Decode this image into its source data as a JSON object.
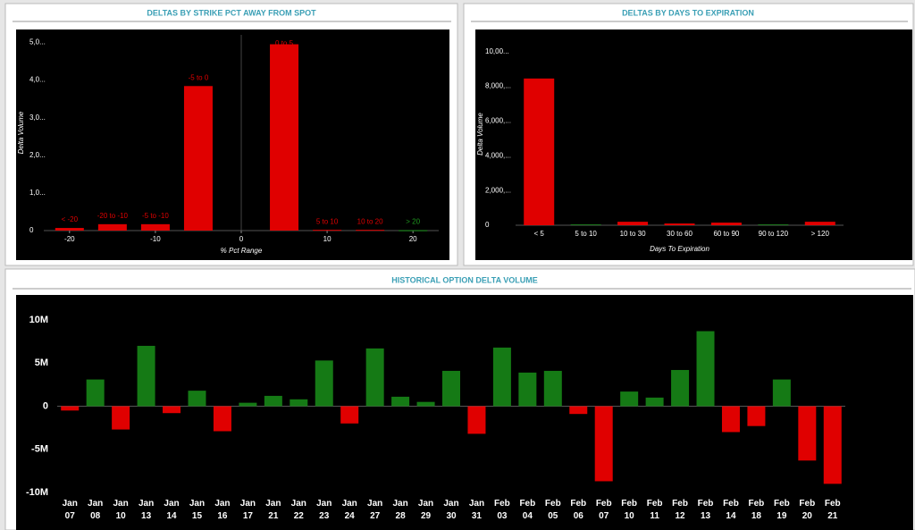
{
  "chart_data": [
    {
      "type": "bar",
      "title": "DELTAS BY STRIKE PCT AWAY FROM SPOT",
      "x_label": "% Pct Range",
      "y_label": "Delta Volume",
      "categories": [
        "< -20",
        "-20 to -10",
        "-5 to -10",
        "-5 to 0",
        "0 to 5",
        "5 to 10",
        "10 to 20",
        "> 20"
      ],
      "x": [
        -20,
        -15,
        -10,
        -5,
        5,
        10,
        15,
        20
      ],
      "values": [
        70,
        170,
        170,
        3840,
        4950,
        20,
        20,
        10
      ],
      "colors": [
        "#e00000",
        "#e00000",
        "#e00000",
        "#e00000",
        "#e00000",
        "#e00000",
        "#e00000",
        "#1f9a1f"
      ],
      "xlim": [
        -23,
        23
      ],
      "xticks": [
        -20,
        -10,
        0,
        10,
        20
      ],
      "ylim": [
        0,
        5200
      ],
      "yticks": [
        0,
        {
          "value": 1000,
          "label": "1,0..."
        },
        {
          "value": 2000,
          "label": "2,0..."
        },
        {
          "value": 3000,
          "label": "3,0..."
        },
        {
          "value": 4000,
          "label": "4,0..."
        },
        {
          "value": 5000,
          "label": "5,0..."
        }
      ]
    },
    {
      "type": "bar",
      "title": "DELTAS BY DAYS TO EXPIRATION",
      "x_label": "Days To Expiration",
      "y_label": "Delta Volume",
      "categories": [
        "< 5",
        "5 to 10",
        "10 to 30",
        "30 to 60",
        "60 to 90",
        "90 to 120",
        "> 120"
      ],
      "values": [
        8450,
        50,
        200,
        100,
        150,
        50,
        200
      ],
      "colors": [
        "#e00000",
        "#1f7a1f",
        "#e00000",
        "#e00000",
        "#e00000",
        "#1f7a1f",
        "#e00000"
      ],
      "ylim": [
        0,
        10500
      ],
      "yticks": [
        0,
        {
          "value": 2000,
          "label": "2,000,..."
        },
        {
          "value": 4000,
          "label": "4,000,..."
        },
        {
          "value": 6000,
          "label": "6,000,..."
        },
        {
          "value": 8000,
          "label": "8,000,..."
        },
        {
          "value": 10000,
          "label": "10,00..."
        }
      ]
    },
    {
      "type": "bar",
      "title": "HISTORICAL OPTION DELTA VOLUME",
      "categories": [
        "Jan 07",
        "Jan 08",
        "Jan 10",
        "Jan 13",
        "Jan 14",
        "Jan 15",
        "Jan 16",
        "Jan 17",
        "Jan 21",
        "Jan 22",
        "Jan 23",
        "Jan 24",
        "Jan 27",
        "Jan 28",
        "Jan 29",
        "Jan 30",
        "Jan 31",
        "Feb 03",
        "Feb 04",
        "Feb 05",
        "Feb 06",
        "Feb 07",
        "Feb 10",
        "Feb 11",
        "Feb 12",
        "Feb 13",
        "Feb 14",
        "Feb 18",
        "Feb 19",
        "Feb 20",
        "Feb 21"
      ],
      "values": [
        -500000,
        3100000,
        -2700000,
        7000000,
        -800000,
        1800000,
        -2900000,
        400000,
        1200000,
        800000,
        5300000,
        -2000000,
        6700000,
        1100000,
        500000,
        4100000,
        -3200000,
        6800000,
        3900000,
        4100000,
        -900000,
        -8700000,
        1700000,
        1000000,
        4200000,
        8700000,
        -3000000,
        -2300000,
        3100000,
        -6300000,
        -9000000
      ],
      "positive_color": "#157a15",
      "negative_color": "#e00000",
      "ylim": [
        -10000000,
        10000000
      ],
      "yticks": [
        {
          "value": -10000000,
          "label": "-10M"
        },
        {
          "value": -5000000,
          "label": "-5M"
        },
        0,
        {
          "value": 5000000,
          "label": "5M"
        },
        {
          "value": 10000000,
          "label": "10M"
        }
      ]
    }
  ]
}
